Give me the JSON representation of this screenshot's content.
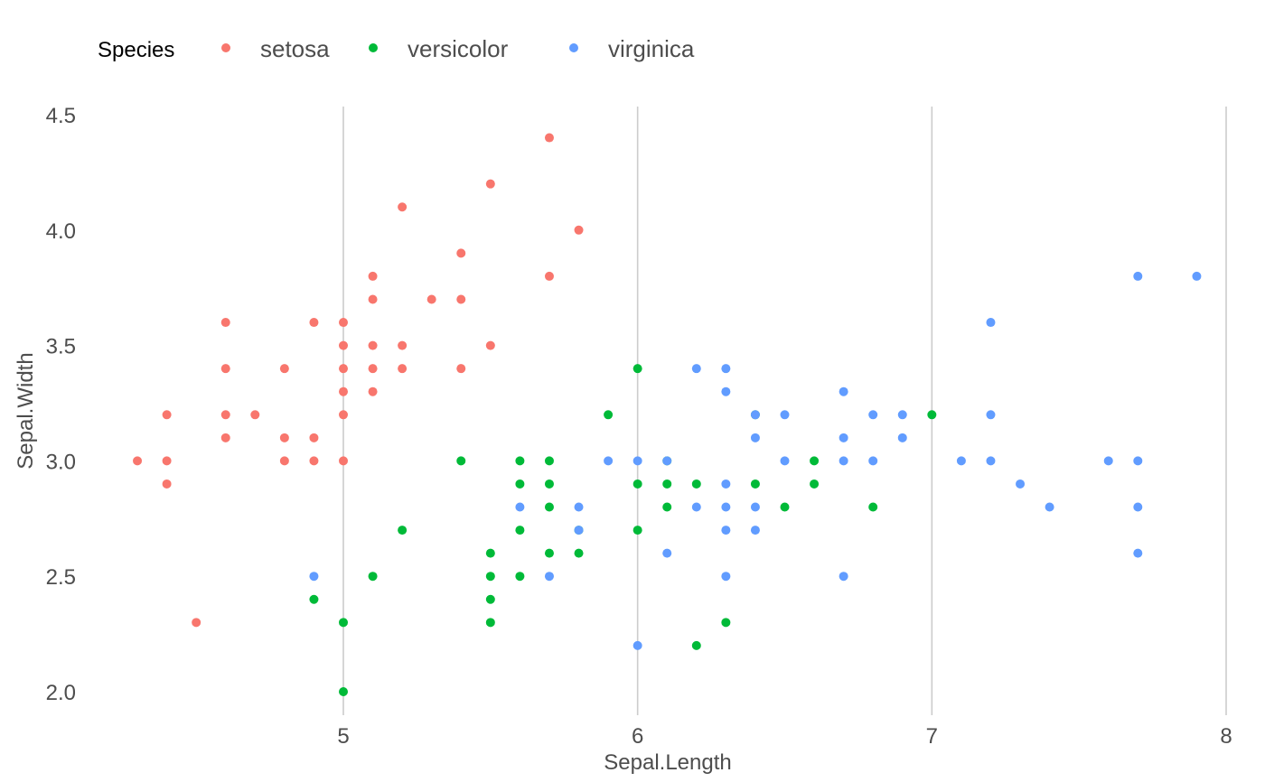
{
  "chart_data": {
    "type": "scatter",
    "xlabel": "Sepal.Length",
    "ylabel": "Sepal.Width",
    "xlim": [
      4.2,
      8.0
    ],
    "ylim": [
      1.9,
      4.55
    ],
    "x_ticks": [
      5,
      6,
      7,
      8
    ],
    "x_tick_labels": [
      "5",
      "6",
      "7",
      "8"
    ],
    "y_ticks": [
      2.0,
      2.5,
      3.0,
      3.5,
      4.0,
      4.5
    ],
    "y_tick_labels": [
      "2.0",
      "2.5",
      "3.0",
      "3.5",
      "4.0",
      "4.5"
    ],
    "grid": "vertical major lines only",
    "legend": {
      "title": "Species",
      "placement": "top-left",
      "entries": [
        {
          "label": "setosa",
          "color": "#f8766d"
        },
        {
          "label": "versicolor",
          "color": "#00ba38"
        },
        {
          "label": "virginica",
          "color": "#619cff"
        }
      ]
    },
    "series": [
      {
        "name": "setosa",
        "color": "#f8766d",
        "points": [
          [
            4.3,
            3.0
          ],
          [
            4.4,
            3.2
          ],
          [
            4.4,
            3.0
          ],
          [
            4.4,
            2.9
          ],
          [
            4.5,
            2.3
          ],
          [
            4.6,
            3.6
          ],
          [
            4.6,
            3.4
          ],
          [
            4.6,
            3.2
          ],
          [
            4.6,
            3.1
          ],
          [
            4.7,
            3.2
          ],
          [
            4.8,
            3.4
          ],
          [
            4.8,
            3.1
          ],
          [
            4.8,
            3.0
          ],
          [
            4.9,
            3.6
          ],
          [
            4.9,
            3.1
          ],
          [
            4.9,
            3.0
          ],
          [
            5.0,
            3.6
          ],
          [
            5.0,
            3.5
          ],
          [
            5.0,
            3.4
          ],
          [
            5.0,
            3.3
          ],
          [
            5.0,
            3.2
          ],
          [
            5.0,
            3.0
          ],
          [
            5.1,
            3.8
          ],
          [
            5.1,
            3.7
          ],
          [
            5.1,
            3.5
          ],
          [
            5.1,
            3.4
          ],
          [
            5.1,
            3.3
          ],
          [
            5.2,
            4.1
          ],
          [
            5.2,
            3.5
          ],
          [
            5.2,
            3.4
          ],
          [
            5.3,
            3.7
          ],
          [
            5.4,
            3.9
          ],
          [
            5.4,
            3.7
          ],
          [
            5.4,
            3.4
          ],
          [
            5.5,
            4.2
          ],
          [
            5.5,
            3.5
          ],
          [
            5.7,
            4.4
          ],
          [
            5.7,
            3.8
          ],
          [
            5.8,
            4.0
          ]
        ]
      },
      {
        "name": "versicolor",
        "color": "#00ba38",
        "points": [
          [
            4.9,
            2.4
          ],
          [
            5.0,
            2.3
          ],
          [
            5.0,
            2.0
          ],
          [
            5.1,
            2.5
          ],
          [
            5.2,
            2.7
          ],
          [
            5.4,
            3.0
          ],
          [
            5.5,
            2.6
          ],
          [
            5.5,
            2.5
          ],
          [
            5.5,
            2.4
          ],
          [
            5.5,
            2.3
          ],
          [
            5.6,
            3.0
          ],
          [
            5.6,
            2.9
          ],
          [
            5.6,
            2.7
          ],
          [
            5.6,
            2.5
          ],
          [
            5.7,
            3.0
          ],
          [
            5.7,
            2.9
          ],
          [
            5.7,
            2.8
          ],
          [
            5.7,
            2.6
          ],
          [
            5.8,
            2.6
          ],
          [
            5.8,
            2.7
          ],
          [
            5.9,
            3.2
          ],
          [
            6.0,
            3.4
          ],
          [
            6.0,
            2.9
          ],
          [
            6.0,
            2.7
          ],
          [
            6.1,
            3.0
          ],
          [
            6.1,
            2.9
          ],
          [
            6.1,
            2.8
          ],
          [
            6.2,
            2.9
          ],
          [
            6.2,
            2.2
          ],
          [
            6.3,
            2.3
          ],
          [
            6.4,
            3.2
          ],
          [
            6.4,
            2.9
          ],
          [
            6.5,
            2.8
          ],
          [
            6.6,
            3.0
          ],
          [
            6.6,
            2.9
          ],
          [
            6.8,
            2.8
          ],
          [
            7.0,
            3.2
          ]
        ]
      },
      {
        "name": "virginica",
        "color": "#619cff",
        "points": [
          [
            4.9,
            2.5
          ],
          [
            5.6,
            2.8
          ],
          [
            5.7,
            2.5
          ],
          [
            5.8,
            2.8
          ],
          [
            5.8,
            2.7
          ],
          [
            5.9,
            3.0
          ],
          [
            6.0,
            3.0
          ],
          [
            6.0,
            2.2
          ],
          [
            6.1,
            3.0
          ],
          [
            6.1,
            2.6
          ],
          [
            6.2,
            3.4
          ],
          [
            6.2,
            2.8
          ],
          [
            6.3,
            3.4
          ],
          [
            6.3,
            3.3
          ],
          [
            6.3,
            2.9
          ],
          [
            6.3,
            2.8
          ],
          [
            6.3,
            2.7
          ],
          [
            6.3,
            2.5
          ],
          [
            6.4,
            3.2
          ],
          [
            6.4,
            3.1
          ],
          [
            6.4,
            2.8
          ],
          [
            6.4,
            2.7
          ],
          [
            6.5,
            3.2
          ],
          [
            6.5,
            3.0
          ],
          [
            6.7,
            3.3
          ],
          [
            6.7,
            3.1
          ],
          [
            6.7,
            3.0
          ],
          [
            6.7,
            2.5
          ],
          [
            6.8,
            3.2
          ],
          [
            6.8,
            3.0
          ],
          [
            6.9,
            3.2
          ],
          [
            6.9,
            3.1
          ],
          [
            7.1,
            3.0
          ],
          [
            7.2,
            3.6
          ],
          [
            7.2,
            3.2
          ],
          [
            7.2,
            3.0
          ],
          [
            7.3,
            2.9
          ],
          [
            7.4,
            2.8
          ],
          [
            7.6,
            3.0
          ],
          [
            7.7,
            3.8
          ],
          [
            7.7,
            3.0
          ],
          [
            7.7,
            2.8
          ],
          [
            7.7,
            2.6
          ],
          [
            7.9,
            3.8
          ]
        ]
      }
    ]
  }
}
